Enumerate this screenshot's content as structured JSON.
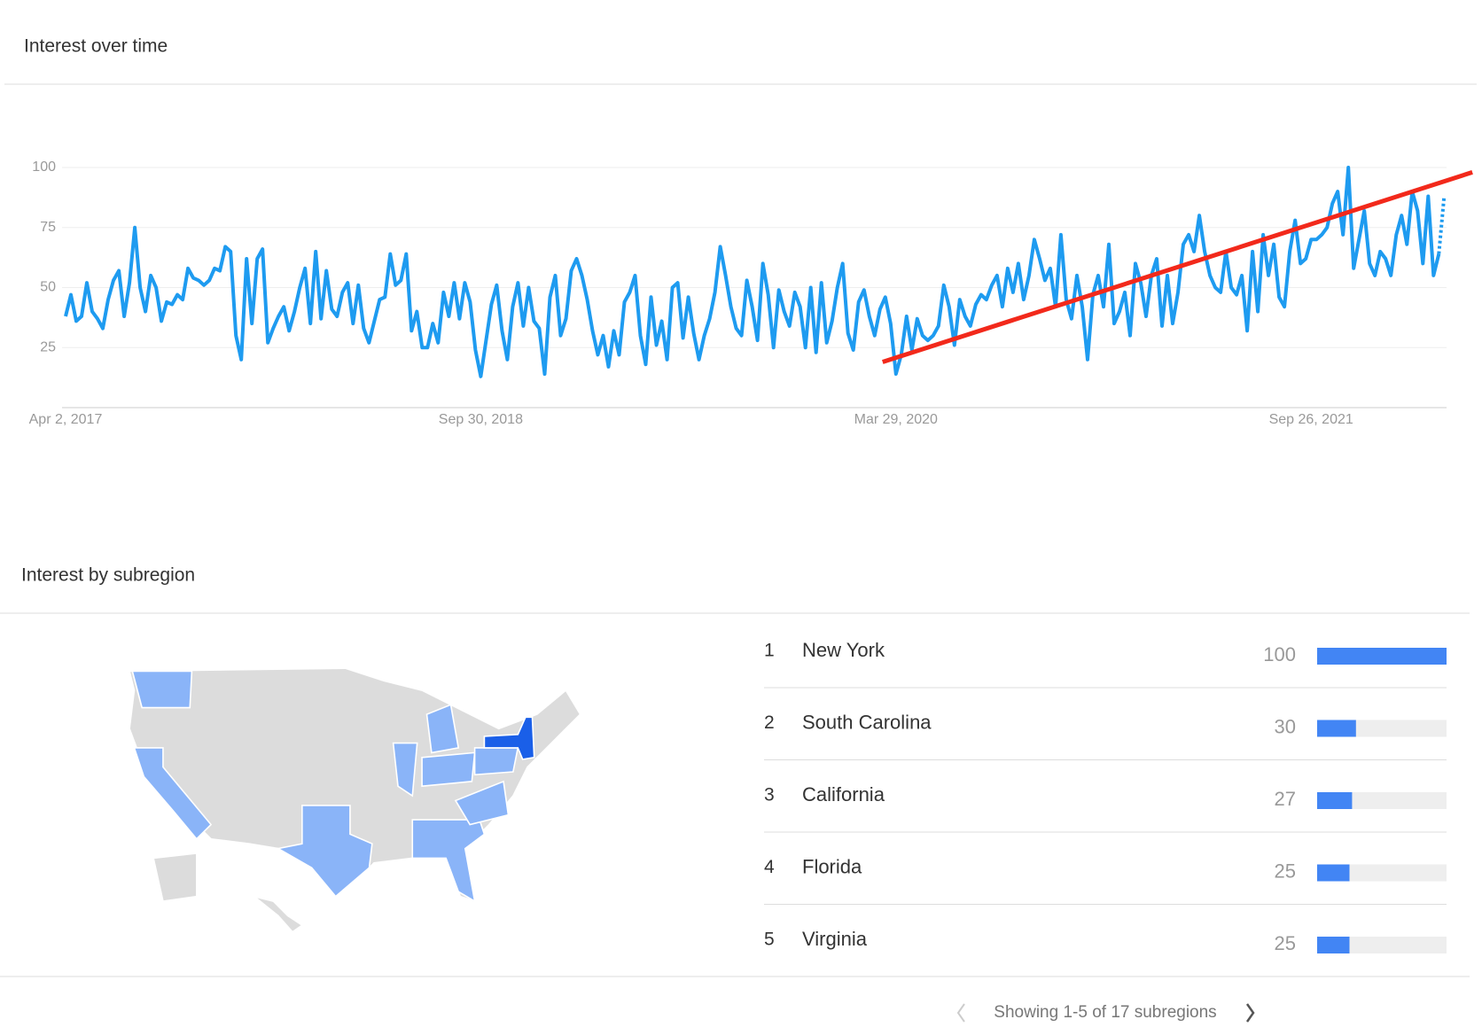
{
  "chart_data": [
    {
      "type": "line",
      "title": "Interest over time",
      "categories": [
        "Apr 2, 2017",
        null,
        null,
        null,
        null,
        null,
        null,
        null,
        null,
        null,
        null,
        null,
        null,
        null,
        null,
        null,
        null,
        null,
        null,
        null,
        null,
        null,
        null,
        null,
        null,
        null,
        null,
        null,
        null,
        null,
        null,
        null,
        null,
        null,
        null,
        null,
        null,
        null,
        null,
        null,
        null,
        null,
        null,
        null,
        null,
        null,
        null,
        null,
        null,
        null,
        null,
        null,
        null,
        null,
        null,
        null,
        null,
        null,
        null,
        null,
        null,
        null,
        null,
        null,
        null,
        null,
        null,
        null,
        null,
        null,
        null,
        null,
        null,
        null,
        null,
        null,
        null,
        null,
        "Sep 30, 2018",
        null,
        null,
        null,
        null,
        null,
        null,
        null,
        null,
        null,
        null,
        null,
        null,
        null,
        null,
        null,
        null,
        null,
        null,
        null,
        null,
        null,
        null,
        null,
        null,
        null,
        null,
        null,
        null,
        null,
        null,
        null,
        null,
        null,
        null,
        null,
        null,
        null,
        null,
        null,
        null,
        null,
        null,
        null,
        null,
        null,
        null,
        null,
        null,
        null,
        null,
        null,
        null,
        null,
        null,
        null,
        null,
        null,
        null,
        null,
        null,
        null,
        null,
        null,
        null,
        null,
        null,
        null,
        null,
        null,
        null,
        null,
        null,
        null,
        null,
        null,
        null,
        null,
        "Mar 29, 2020",
        null,
        null,
        null,
        null,
        null,
        null,
        null,
        null,
        null,
        null,
        null,
        null,
        null,
        null,
        null,
        null,
        null,
        null,
        null,
        null,
        null,
        null,
        null,
        null,
        null,
        null,
        null,
        null,
        null,
        null,
        null,
        null,
        null,
        null,
        null,
        null,
        null,
        null,
        null,
        null,
        null,
        null,
        null,
        null,
        null,
        null,
        null,
        null,
        null,
        null,
        null,
        null,
        null,
        null,
        null,
        null,
        null,
        null,
        null,
        null,
        null,
        null,
        null,
        null,
        null,
        null,
        null,
        null,
        null,
        null,
        null,
        null,
        null,
        null,
        null,
        null,
        null,
        "Sep 26, 2021",
        null,
        null,
        null,
        null,
        null,
        null,
        null,
        null,
        null,
        null,
        null,
        null,
        null,
        null,
        null,
        null,
        null,
        null,
        null,
        null,
        null,
        null,
        null,
        null,
        null
      ],
      "values": [
        38,
        47,
        36,
        38,
        52,
        40,
        37,
        33,
        45,
        53,
        57,
        38,
        52,
        75,
        50,
        40,
        55,
        50,
        36,
        44,
        43,
        47,
        45,
        58,
        54,
        53,
        51,
        53,
        58,
        57,
        67,
        65,
        30,
        20,
        62,
        35,
        62,
        66,
        27,
        33,
        38,
        42,
        32,
        40,
        50,
        58,
        35,
        65,
        37,
        57,
        41,
        38,
        48,
        52,
        35,
        51,
        33,
        27,
        36,
        45,
        46,
        64,
        51,
        53,
        64,
        32,
        40,
        25,
        25,
        35,
        27,
        48,
        38,
        52,
        37,
        52,
        44,
        24,
        13,
        28,
        43,
        51,
        32,
        20,
        42,
        52,
        34,
        50,
        36,
        33,
        14,
        46,
        55,
        30,
        37,
        57,
        62,
        55,
        45,
        32,
        22,
        30,
        17,
        32,
        22,
        44,
        48,
        55,
        30,
        18,
        46,
        26,
        36,
        20,
        50,
        52,
        29,
        46,
        31,
        20,
        30,
        37,
        48,
        67,
        55,
        42,
        33,
        30,
        53,
        42,
        28,
        60,
        47,
        25,
        49,
        40,
        34,
        48,
        42,
        25,
        50,
        23,
        52,
        27,
        36,
        50,
        60,
        31,
        24,
        44,
        49,
        38,
        30,
        41,
        46,
        35,
        14,
        22,
        38,
        24,
        37,
        30,
        28,
        30,
        34,
        51,
        42,
        26,
        45,
        38,
        34,
        43,
        47,
        45,
        51,
        55,
        42,
        58,
        48,
        60,
        45,
        55,
        70,
        62,
        53,
        58,
        42,
        72,
        45,
        37,
        55,
        42,
        20,
        47,
        55,
        42,
        68,
        35,
        40,
        48,
        30,
        60,
        52,
        38,
        55,
        62,
        34,
        55,
        35,
        48,
        68,
        72,
        65,
        80,
        65,
        55,
        50,
        48,
        65,
        50,
        47,
        55,
        32,
        65,
        40,
        72,
        55,
        68,
        46,
        42,
        65,
        78,
        60,
        62,
        70,
        70,
        72,
        75,
        85,
        90,
        72,
        100,
        58,
        70,
        82,
        60,
        55,
        65,
        62,
        55,
        72,
        80,
        68,
        90,
        82,
        60,
        88,
        55,
        64,
        88
      ],
      "color": "#1e9bf0",
      "partial_last": true,
      "ylim": [
        0,
        100
      ],
      "yticks": [
        25,
        50,
        75,
        100
      ],
      "grid": true,
      "trend_line": {
        "color": "#f2291b",
        "x": [
          153.5,
          264.3
        ],
        "values": [
          19,
          98
        ]
      }
    },
    {
      "type": "bar",
      "title": "Interest by subregion",
      "orientation": "horizontal",
      "ranks": [
        1,
        2,
        3,
        4,
        5
      ],
      "categories": [
        "New York",
        "South Carolina",
        "California",
        "Florida",
        "Virginia"
      ],
      "values": [
        100,
        30,
        27,
        25,
        25
      ],
      "color": "#4285f4",
      "track_color": "#eeeeee",
      "xlim": [
        0,
        100
      ]
    }
  ],
  "pagination": "Showing 1-5 of 17 subregions"
}
